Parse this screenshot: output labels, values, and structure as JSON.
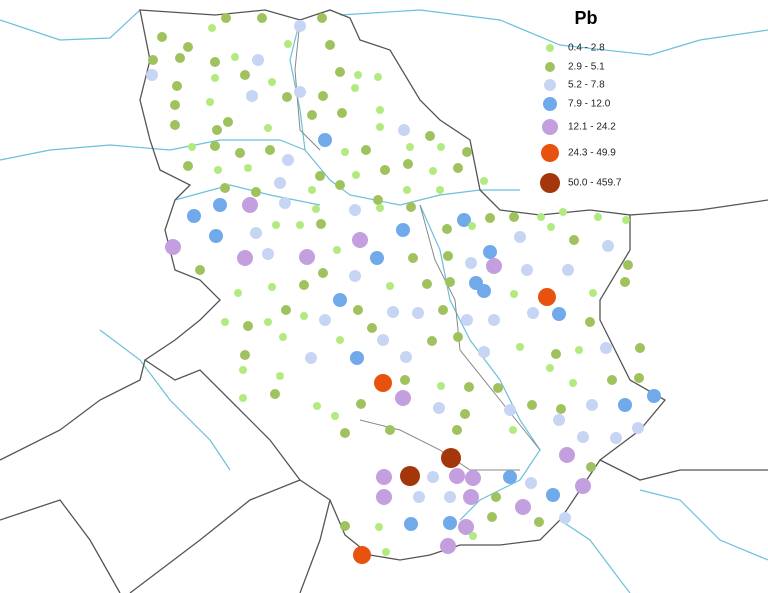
{
  "legend": {
    "title": "Pb",
    "classes": [
      {
        "label": "0.4 - 2.8",
        "color": "#b3ea80"
      },
      {
        "label": "2.9 - 5.1",
        "color": "#9fc25e"
      },
      {
        "label": "5.2 - 7.8",
        "color": "#c7d5f5"
      },
      {
        "label": "7.9 - 12.0",
        "color": "#70aaea"
      },
      {
        "label": "12.1 - 24.2",
        "color": "#c49fe0"
      },
      {
        "label": "24.3 - 49.9",
        "color": "#e8520f"
      },
      {
        "label": "50.0 - 459.7",
        "color": "#a4360c"
      }
    ]
  }
}
